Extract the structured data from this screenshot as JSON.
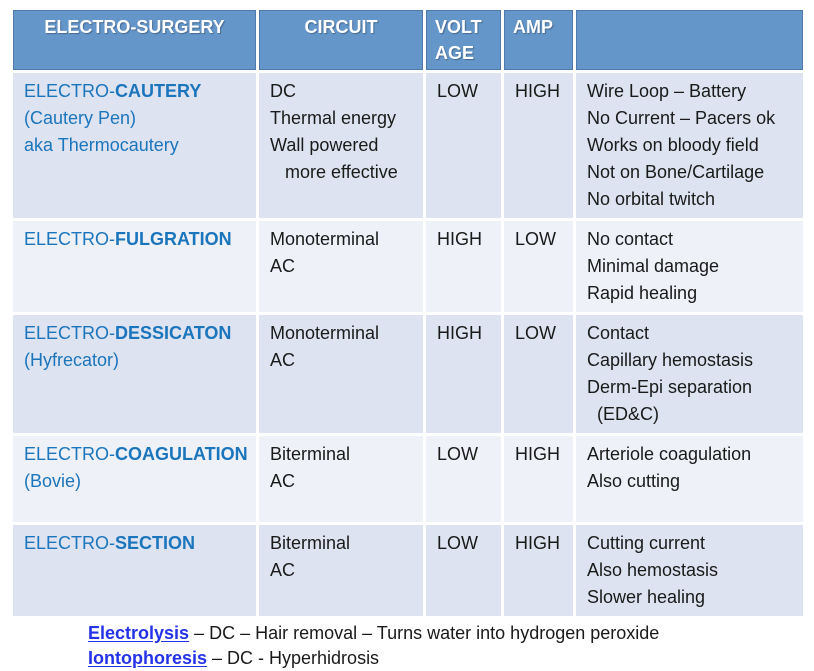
{
  "table": {
    "headers": [
      "ELECTRO-SURGERY",
      "CIRCUIT",
      "VOLT AGE",
      "AMP",
      ""
    ],
    "rows": [
      {
        "name_prefix": "ELECTRO-",
        "name_bold": "CAUTERY",
        "name_sub": "(Cautery Pen)\naka Thermocautery",
        "circuit": "DC\nThermal energy\nWall powered\n   more effective",
        "voltage": "LOW",
        "amp": "HIGH",
        "notes": "Wire Loop – Battery\nNo Current – Pacers ok\nWorks on bloody field\nNot on Bone/Cartilage\nNo orbital twitch"
      },
      {
        "name_prefix": "ELECTRO-",
        "name_bold": "FULGRATION",
        "name_sub": "",
        "circuit": "Monoterminal\nAC",
        "voltage": "HIGH",
        "amp": "LOW",
        "notes": "No contact\nMinimal damage\nRapid healing"
      },
      {
        "name_prefix": "ELECTRO-",
        "name_bold": "DESSICATON",
        "name_sub": "(Hyfrecator)",
        "circuit": "Monoterminal\nAC",
        "voltage": "HIGH",
        "amp": "LOW",
        "notes": "Contact\nCapillary hemostasis\nDerm-Epi separation\n  (ED&C)"
      },
      {
        "name_prefix": "ELECTRO-",
        "name_bold": "COAGULATION",
        "name_sub": "(Bovie)",
        "circuit": "Biterminal\nAC",
        "voltage": "LOW",
        "amp": "HIGH",
        "notes": "Arteriole coagulation\nAlso cutting"
      },
      {
        "name_prefix": "ELECTRO-",
        "name_bold": "SECTION",
        "name_sub": "",
        "circuit": "Biterminal\nAC",
        "voltage": "LOW",
        "amp": "HIGH",
        "notes": "Cutting current\nAlso hemostasis\nSlower healing"
      }
    ]
  },
  "footnotes": {
    "lines": [
      {
        "term": "Electrolysis",
        "rest": " – DC – Hair removal – Turns water into hydrogen peroxide"
      },
      {
        "term": "Iontophoresis",
        "rest": " – DC - Hyperhidrosis"
      }
    ]
  },
  "colors": {
    "header_bg": "#6596c9",
    "header_border": "#4e7bab",
    "row_dark": "#dde3f0",
    "row_light": "#eef1f8",
    "name_blue": "#1b75bc",
    "footnote_blue": "#2433e8"
  }
}
